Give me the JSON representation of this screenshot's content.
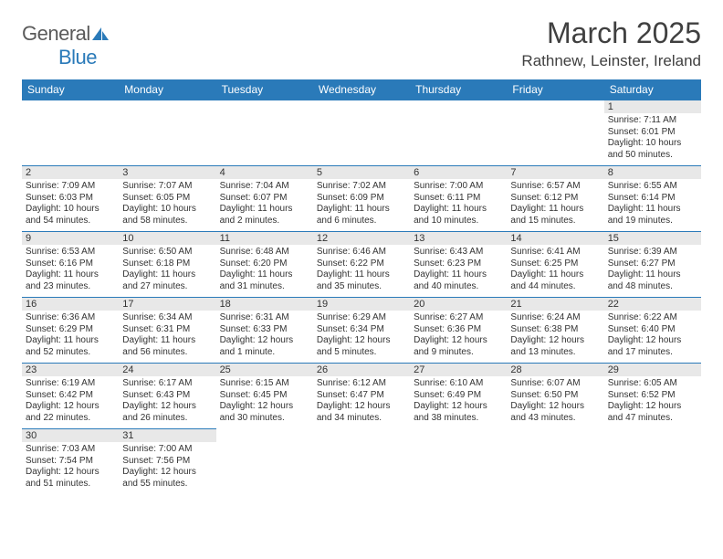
{
  "logo": {
    "part1": "General",
    "part2": "Blue"
  },
  "header": {
    "title": "March 2025",
    "location": "Rathnew, Leinster, Ireland"
  },
  "weekdays": [
    "Sunday",
    "Monday",
    "Tuesday",
    "Wednesday",
    "Thursday",
    "Friday",
    "Saturday"
  ],
  "colors": {
    "accent": "#2a7ab9",
    "header_text": "#ffffff",
    "daynum_bg": "#e8e8e8",
    "text": "#333333",
    "title_color": "#404040"
  },
  "days": {
    "d1": {
      "n": "1",
      "sr": "7:11 AM",
      "ss": "6:01 PM",
      "dl": "10 hours and 50 minutes."
    },
    "d2": {
      "n": "2",
      "sr": "7:09 AM",
      "ss": "6:03 PM",
      "dl": "10 hours and 54 minutes."
    },
    "d3": {
      "n": "3",
      "sr": "7:07 AM",
      "ss": "6:05 PM",
      "dl": "10 hours and 58 minutes."
    },
    "d4": {
      "n": "4",
      "sr": "7:04 AM",
      "ss": "6:07 PM",
      "dl": "11 hours and 2 minutes."
    },
    "d5": {
      "n": "5",
      "sr": "7:02 AM",
      "ss": "6:09 PM",
      "dl": "11 hours and 6 minutes."
    },
    "d6": {
      "n": "6",
      "sr": "7:00 AM",
      "ss": "6:11 PM",
      "dl": "11 hours and 10 minutes."
    },
    "d7": {
      "n": "7",
      "sr": "6:57 AM",
      "ss": "6:12 PM",
      "dl": "11 hours and 15 minutes."
    },
    "d8": {
      "n": "8",
      "sr": "6:55 AM",
      "ss": "6:14 PM",
      "dl": "11 hours and 19 minutes."
    },
    "d9": {
      "n": "9",
      "sr": "6:53 AM",
      "ss": "6:16 PM",
      "dl": "11 hours and 23 minutes."
    },
    "d10": {
      "n": "10",
      "sr": "6:50 AM",
      "ss": "6:18 PM",
      "dl": "11 hours and 27 minutes."
    },
    "d11": {
      "n": "11",
      "sr": "6:48 AM",
      "ss": "6:20 PM",
      "dl": "11 hours and 31 minutes."
    },
    "d12": {
      "n": "12",
      "sr": "6:46 AM",
      "ss": "6:22 PM",
      "dl": "11 hours and 35 minutes."
    },
    "d13": {
      "n": "13",
      "sr": "6:43 AM",
      "ss": "6:23 PM",
      "dl": "11 hours and 40 minutes."
    },
    "d14": {
      "n": "14",
      "sr": "6:41 AM",
      "ss": "6:25 PM",
      "dl": "11 hours and 44 minutes."
    },
    "d15": {
      "n": "15",
      "sr": "6:39 AM",
      "ss": "6:27 PM",
      "dl": "11 hours and 48 minutes."
    },
    "d16": {
      "n": "16",
      "sr": "6:36 AM",
      "ss": "6:29 PM",
      "dl": "11 hours and 52 minutes."
    },
    "d17": {
      "n": "17",
      "sr": "6:34 AM",
      "ss": "6:31 PM",
      "dl": "11 hours and 56 minutes."
    },
    "d18": {
      "n": "18",
      "sr": "6:31 AM",
      "ss": "6:33 PM",
      "dl": "12 hours and 1 minute."
    },
    "d19": {
      "n": "19",
      "sr": "6:29 AM",
      "ss": "6:34 PM",
      "dl": "12 hours and 5 minutes."
    },
    "d20": {
      "n": "20",
      "sr": "6:27 AM",
      "ss": "6:36 PM",
      "dl": "12 hours and 9 minutes."
    },
    "d21": {
      "n": "21",
      "sr": "6:24 AM",
      "ss": "6:38 PM",
      "dl": "12 hours and 13 minutes."
    },
    "d22": {
      "n": "22",
      "sr": "6:22 AM",
      "ss": "6:40 PM",
      "dl": "12 hours and 17 minutes."
    },
    "d23": {
      "n": "23",
      "sr": "6:19 AM",
      "ss": "6:42 PM",
      "dl": "12 hours and 22 minutes."
    },
    "d24": {
      "n": "24",
      "sr": "6:17 AM",
      "ss": "6:43 PM",
      "dl": "12 hours and 26 minutes."
    },
    "d25": {
      "n": "25",
      "sr": "6:15 AM",
      "ss": "6:45 PM",
      "dl": "12 hours and 30 minutes."
    },
    "d26": {
      "n": "26",
      "sr": "6:12 AM",
      "ss": "6:47 PM",
      "dl": "12 hours and 34 minutes."
    },
    "d27": {
      "n": "27",
      "sr": "6:10 AM",
      "ss": "6:49 PM",
      "dl": "12 hours and 38 minutes."
    },
    "d28": {
      "n": "28",
      "sr": "6:07 AM",
      "ss": "6:50 PM",
      "dl": "12 hours and 43 minutes."
    },
    "d29": {
      "n": "29",
      "sr": "6:05 AM",
      "ss": "6:52 PM",
      "dl": "12 hours and 47 minutes."
    },
    "d30": {
      "n": "30",
      "sr": "7:03 AM",
      "ss": "7:54 PM",
      "dl": "12 hours and 51 minutes."
    },
    "d31": {
      "n": "31",
      "sr": "7:00 AM",
      "ss": "7:56 PM",
      "dl": "12 hours and 55 minutes."
    }
  },
  "labels": {
    "sunrise": "Sunrise: ",
    "sunset": "Sunset: ",
    "daylight": "Daylight: "
  }
}
